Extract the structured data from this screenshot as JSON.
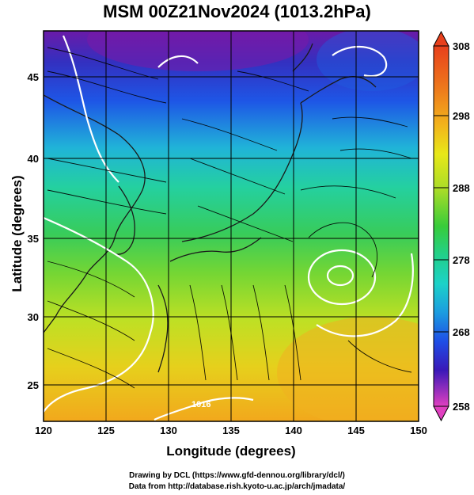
{
  "title": "MSM 00Z21Nov2024 (1013.2hPa)",
  "xlabel": "Longitude (degrees)",
  "ylabel": "Latitude  (degrees)",
  "credits": [
    "Drawing by DCL (https://www.gfd-dennou.org/library/dcl/)",
    "Data from http://database.rish.kyoto-u.ac.jp/arch/jmadata/"
  ],
  "map": {
    "lon_range": [
      120,
      150
    ],
    "lat_range": [
      22.4,
      47.6
    ],
    "lon_ticks": [
      "120",
      "125",
      "130",
      "135",
      "140",
      "145",
      "150"
    ],
    "lat_ticks": [
      "25",
      "30",
      "35",
      "40",
      "45"
    ],
    "grid": true,
    "contour_label": "1016"
  },
  "colorbar": {
    "ticks": [
      "308",
      "298",
      "288",
      "278",
      "268",
      "258"
    ],
    "min": 258,
    "max": 308,
    "colors": [
      "#e040c0",
      "#9a1aa8",
      "#3a18b8",
      "#1e4ee6",
      "#1c9ce0",
      "#1cd2c8",
      "#22d08a",
      "#38cc3a",
      "#a8dc28",
      "#e8e818",
      "#f2b41c",
      "#ee7a1c",
      "#e8401c"
    ]
  },
  "colors": {
    "land": "#1a1a1a",
    "contour": "#ffffff",
    "streamline": "#000000"
  }
}
